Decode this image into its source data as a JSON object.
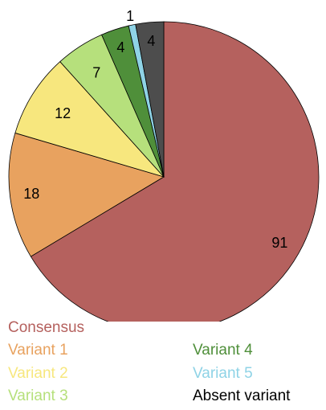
{
  "chart_data": {
    "type": "pie",
    "labels": [
      "Consensus",
      "Variant 1",
      "Variant 2",
      "Variant 3",
      "Variant 4",
      "Variant 5",
      "Absent variant"
    ],
    "values": [
      91,
      18,
      12,
      7,
      4,
      1,
      4
    ],
    "colors": [
      "#b5615e",
      "#e8a25f",
      "#f7e77e",
      "#b6e07c",
      "#4f8f3a",
      "#8fd3e6",
      "#4d4d4d"
    ],
    "legend_colors": [
      "#b5615e",
      "#e8a25f",
      "#f7e77e",
      "#b6e07c",
      "#4f8f3a",
      "#8fd3e6",
      "#000000"
    ],
    "start_angle_deg": 0,
    "direction": "clockwise",
    "legend": "bottom"
  }
}
